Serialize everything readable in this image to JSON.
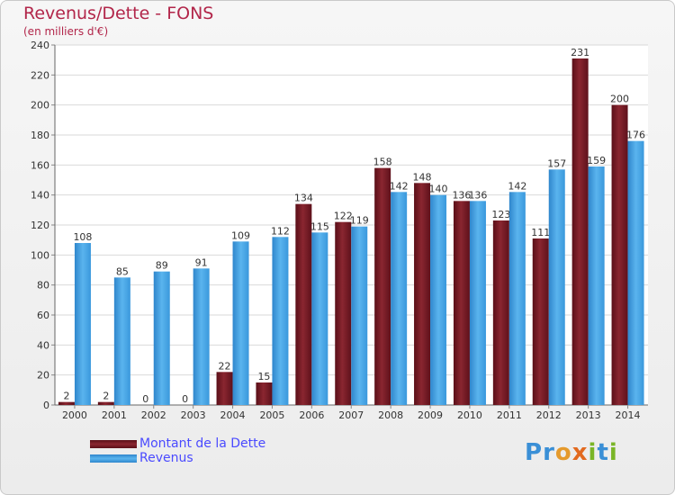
{
  "title": "Revenus/Dette - FONS",
  "subtitle": "(en milliers d'€)",
  "colors": {
    "dette": "#7a1a26",
    "revenus": "#3a98dc",
    "logo_p": "#3a8fd6",
    "logo_o": "#e59a2c",
    "logo_x": "#e26a1f",
    "logo_i": "#7ab527"
  },
  "legend": {
    "dette_label": "Montant de la Dette",
    "revenus_label": "Revenus"
  },
  "logo": {
    "text": "Proxiti"
  },
  "chart_data": {
    "type": "bar",
    "title": "Revenus/Dette - FONS",
    "ylabel": "(en milliers d'€)",
    "xlabel": "",
    "ylim": [
      0,
      240
    ],
    "yticks": [
      0,
      20,
      40,
      60,
      80,
      100,
      120,
      140,
      160,
      180,
      200,
      220,
      240
    ],
    "categories": [
      "2000",
      "2001",
      "2002",
      "2003",
      "2004",
      "2005",
      "2006",
      "2007",
      "2008",
      "2009",
      "2010",
      "2011",
      "2012",
      "2013",
      "2014"
    ],
    "series": [
      {
        "name": "Montant de la Dette",
        "values": [
          2,
          2,
          0,
          0,
          22,
          15,
          134,
          122,
          158,
          148,
          136,
          123,
          111,
          231,
          200
        ]
      },
      {
        "name": "Revenus",
        "values": [
          108,
          85,
          89,
          91,
          109,
          112,
          115,
          119,
          142,
          140,
          136,
          142,
          157,
          159,
          176
        ]
      }
    ],
    "grid": true,
    "legend_position": "bottom-left"
  }
}
